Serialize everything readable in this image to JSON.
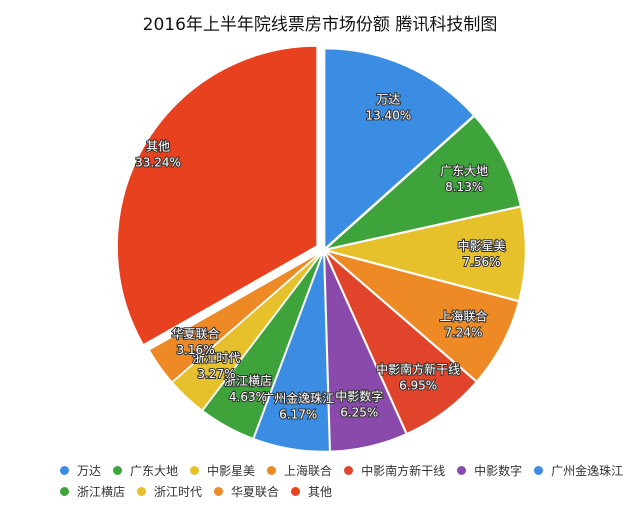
{
  "chart_data": {
    "type": "pie",
    "title": "2016年上半年院线票房市场份额   腾讯科技制图",
    "legend_position": "bottom",
    "slices": [
      {
        "label": "万达",
        "value": 13.4,
        "display": "13.40%",
        "color": "#3b8de3"
      },
      {
        "label": "广东大地",
        "value": 8.13,
        "display": "8.13%",
        "color": "#3da33a"
      },
      {
        "label": "中影星美",
        "value": 7.56,
        "display": "7.56%",
        "color": "#e6c12b"
      },
      {
        "label": "上海联合",
        "value": 7.24,
        "display": "7.24%",
        "color": "#ee8a26"
      },
      {
        "label": "中影南方新干线",
        "value": 6.95,
        "display": "6.95%",
        "color": "#e0442a"
      },
      {
        "label": "中影数字",
        "value": 6.25,
        "display": "6.25%",
        "color": "#8a4aab"
      },
      {
        "label": "广州金逸珠江",
        "value": 6.17,
        "display": "6.17%",
        "color": "#3b8de3"
      },
      {
        "label": "浙江横店",
        "value": 4.63,
        "display": "4.63%",
        "color": "#3da33a"
      },
      {
        "label": "浙江时代",
        "value": 3.27,
        "display": "3.27%",
        "color": "#e6c12b"
      },
      {
        "label": "华夏联合",
        "value": 3.16,
        "display": "3.16%",
        "color": "#ee8a26"
      },
      {
        "label": "其他",
        "value": 33.24,
        "display": "33.24%",
        "color": "#e8411f",
        "exploded": true
      }
    ]
  }
}
